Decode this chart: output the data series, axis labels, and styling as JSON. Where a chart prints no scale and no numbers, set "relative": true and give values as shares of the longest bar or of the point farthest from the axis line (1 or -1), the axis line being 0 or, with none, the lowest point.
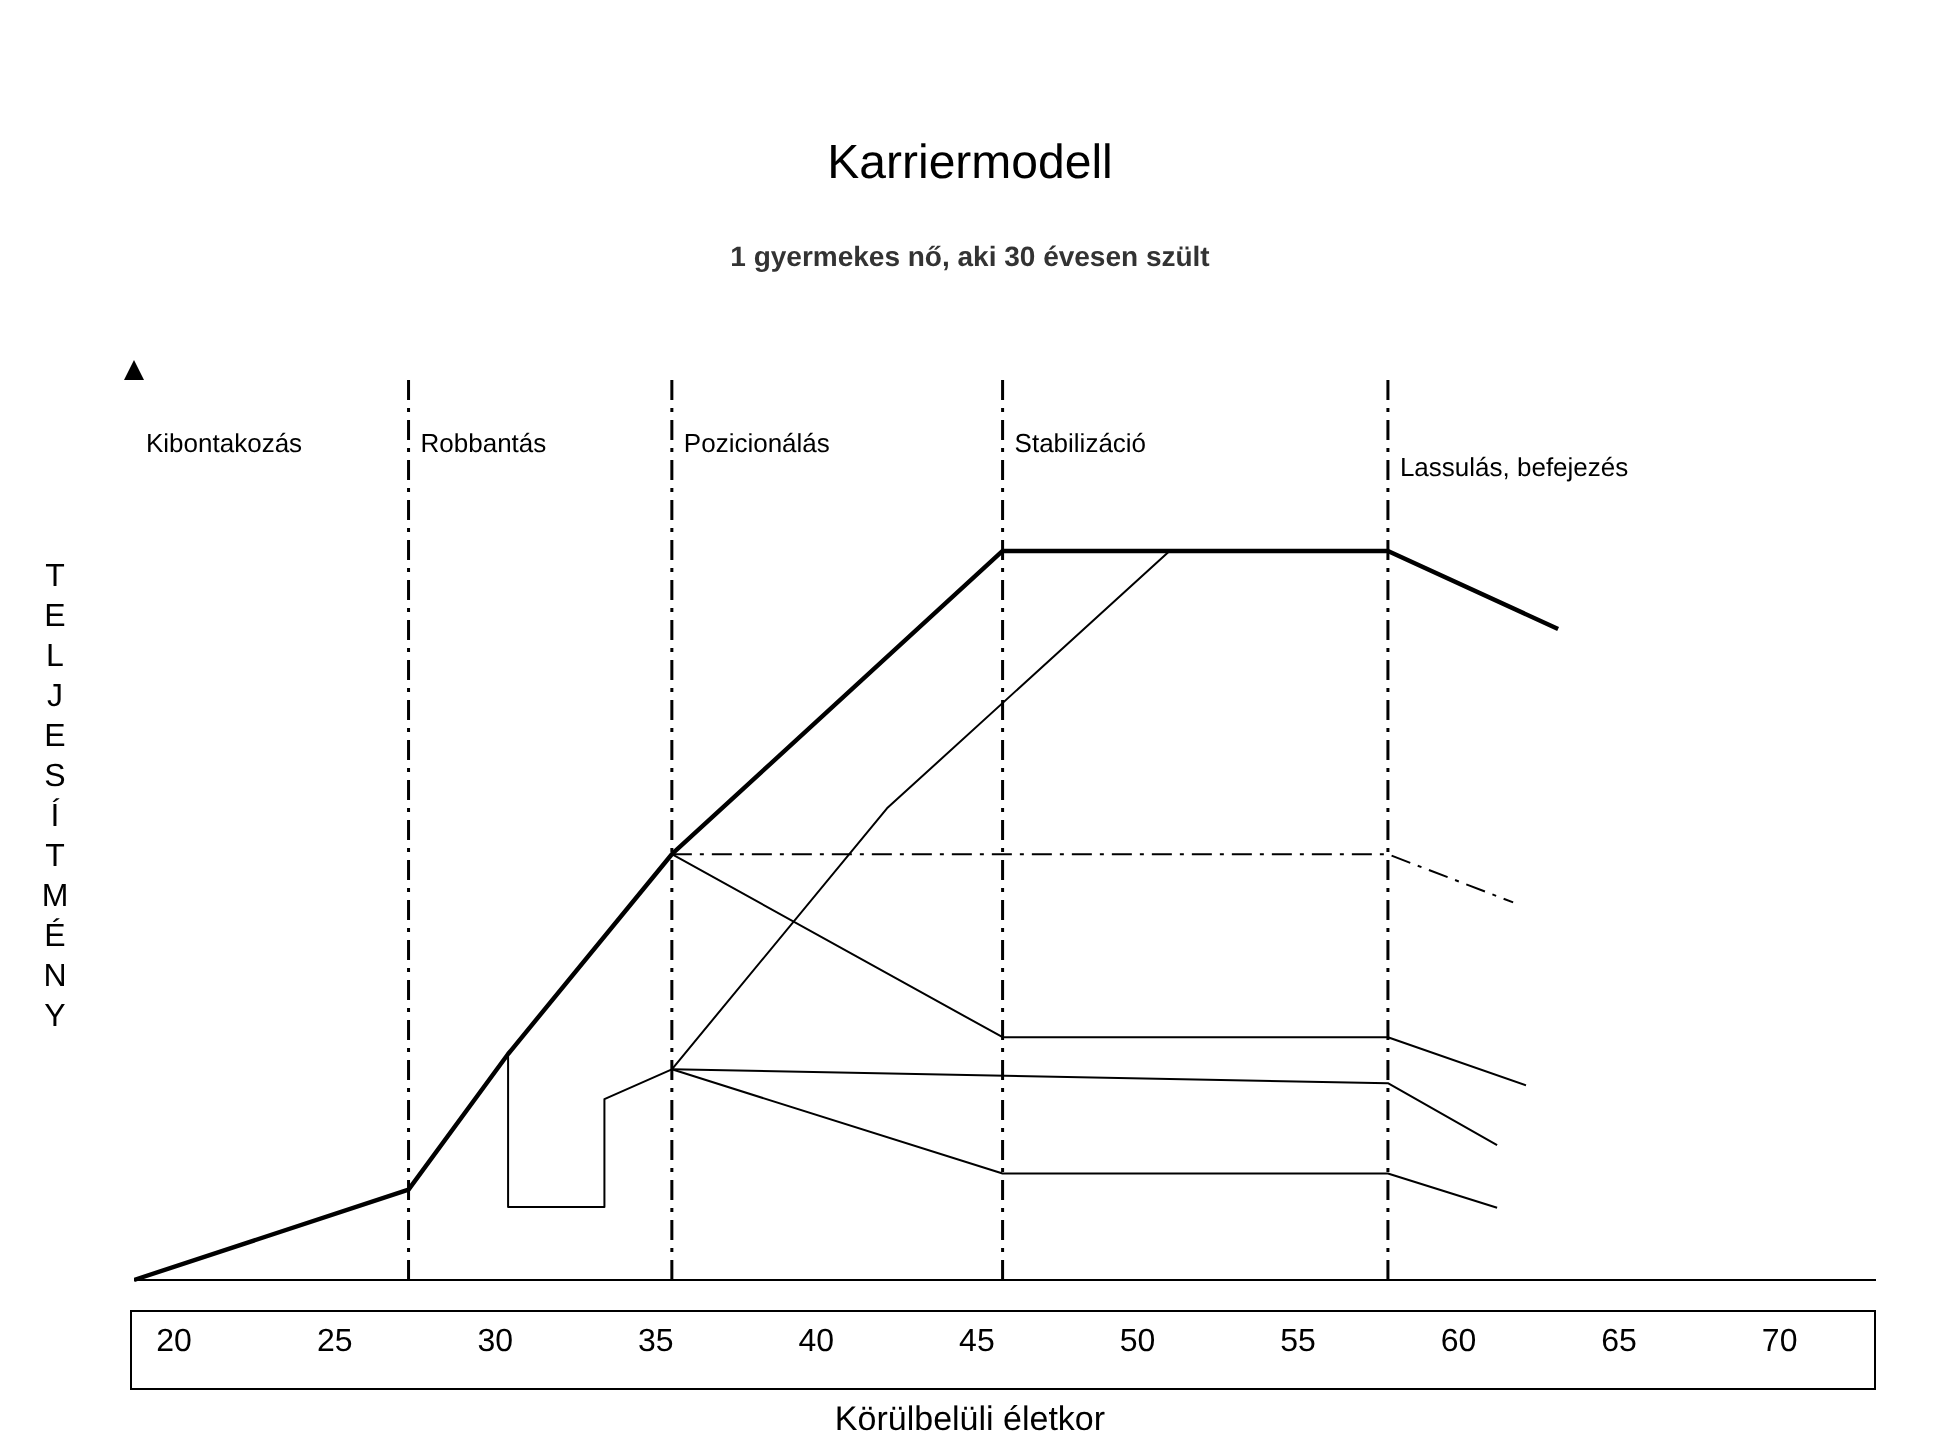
{
  "chart_data": {
    "type": "line",
    "title": "Karriermodell",
    "subtitle": "1 gyermekes nő, aki 30 évesen szült",
    "xlabel": "Körülbelüli életkor",
    "ylabel": "TELJESÍTMÉNY",
    "relative": true,
    "xlim": [
      18.75,
      73
    ],
    "xticks": [
      20,
      25,
      30,
      35,
      40,
      45,
      50,
      55,
      60,
      65,
      70
    ],
    "series": [
      {
        "color": "#000000",
        "line_style": "solid",
        "x": [
          18.75,
          27.3,
          30.4,
          35.5,
          45.8,
          57.8,
          63.1
        ],
        "values": [
          0,
          0.124,
          0.31,
          0.584,
          1,
          1,
          0.893
        ]
      },
      {
        "color": "#000000",
        "line_style": "solid",
        "x": [
          30.4,
          30.4,
          33.4,
          33.4,
          35.5,
          42.2,
          51
        ],
        "values": [
          0.31,
          0.1,
          0.1,
          0.248,
          0.289,
          0.647,
          1
        ]
      },
      {
        "color": "#000000",
        "line_style": "solid",
        "x": [
          35.5,
          57.8,
          61.2
        ],
        "values": [
          0.289,
          0.27,
          0.185
        ]
      },
      {
        "color": "#000000",
        "line_style": "solid",
        "x": [
          35.5,
          45.8,
          57.8,
          61.2
        ],
        "values": [
          0.289,
          0.146,
          0.146,
          0.099
        ]
      },
      {
        "color": "#000000",
        "line_style": "dashed",
        "x": [
          35.5,
          57.8,
          61.7
        ],
        "values": [
          0.584,
          0.584,
          0.518
        ]
      },
      {
        "color": "#000000",
        "line_style": "solid",
        "x": [
          35.5,
          45.8,
          57.8,
          62.1
        ],
        "values": [
          0.584,
          0.333,
          0.333,
          0.267
        ]
      }
    ],
    "ref_lines": [
      {
        "axis": "x",
        "value": 27.3,
        "color": "#000000",
        "line_style": "dashed"
      },
      {
        "axis": "x",
        "value": 35.5,
        "color": "#000000",
        "line_style": "dashed"
      },
      {
        "axis": "x",
        "value": 45.8,
        "color": "#000000",
        "line_style": "dashed"
      },
      {
        "axis": "x",
        "value": 57.8,
        "color": "#000000",
        "line_style": "dashed"
      }
    ],
    "annotations": [
      "Kibontakozás",
      "Robbantás",
      "Pozicionálás",
      "Stabilizáció",
      "Lassulás, befejezés"
    ]
  }
}
